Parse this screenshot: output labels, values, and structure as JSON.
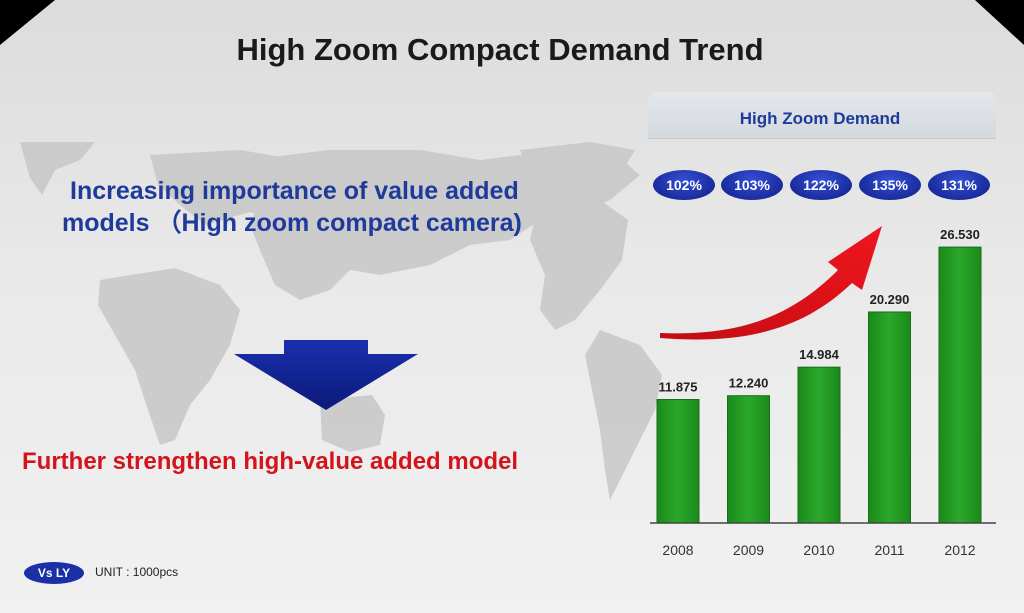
{
  "title": "High Zoom Compact Demand Trend",
  "left_text": {
    "line1": "Increasing importance of value added",
    "line2": "models （High zoom compact camera)"
  },
  "conclusion": "Further strengthen high-value added model",
  "footer": {
    "badge": "Vs LY",
    "unit": "UNIT : 1000pcs"
  },
  "colors": {
    "title": "#1a1a1a",
    "accent_blue": "#1e3a9a",
    "conclusion_red": "#d3141c",
    "bar_green": "#1f9a1f",
    "badge_blue": "#1c2fa6",
    "arrow_red": "#e8141c"
  },
  "chart_data": {
    "type": "bar",
    "title": "High Zoom Demand",
    "unit": "UNIT : 1000pcs",
    "categories": [
      "2008",
      "2009",
      "2010",
      "2011",
      "2012"
    ],
    "values": [
      11875,
      12240,
      14984,
      20290,
      26530
    ],
    "value_labels": [
      "11.875",
      "12.240",
      "14.984",
      "20.290",
      "26.530"
    ],
    "vs_last_year": [
      "102%",
      "103%",
      "122%",
      "135%",
      "131%"
    ],
    "ylim": [
      0,
      30000
    ],
    "grid": false
  }
}
